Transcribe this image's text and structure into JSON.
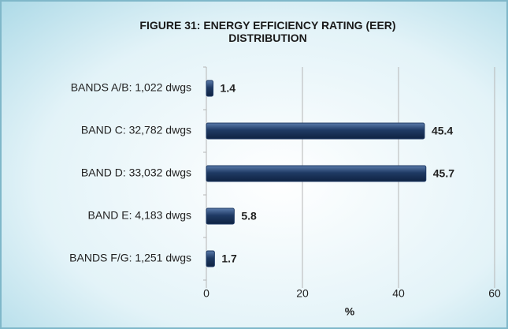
{
  "chart_data": {
    "type": "bar",
    "orientation": "horizontal",
    "title": "FIGURE 31: ENERGY EFFICIENCY RATING (EER) DISTRIBUTION",
    "x_label": "%",
    "categories": [
      "BANDS A/B: 1,022 dwgs",
      "BAND C: 32,782 dwgs",
      "BAND D: 33,032 dwgs",
      "BAND E: 4,183 dwgs",
      "BANDS F/G: 1,251 dwgs"
    ],
    "values": [
      1.4,
      45.4,
      45.7,
      5.8,
      1.7
    ],
    "color": "#1f3a64",
    "xlim": [
      0,
      60
    ],
    "xticks": [
      0,
      20,
      40,
      60
    ],
    "grid": true
  }
}
